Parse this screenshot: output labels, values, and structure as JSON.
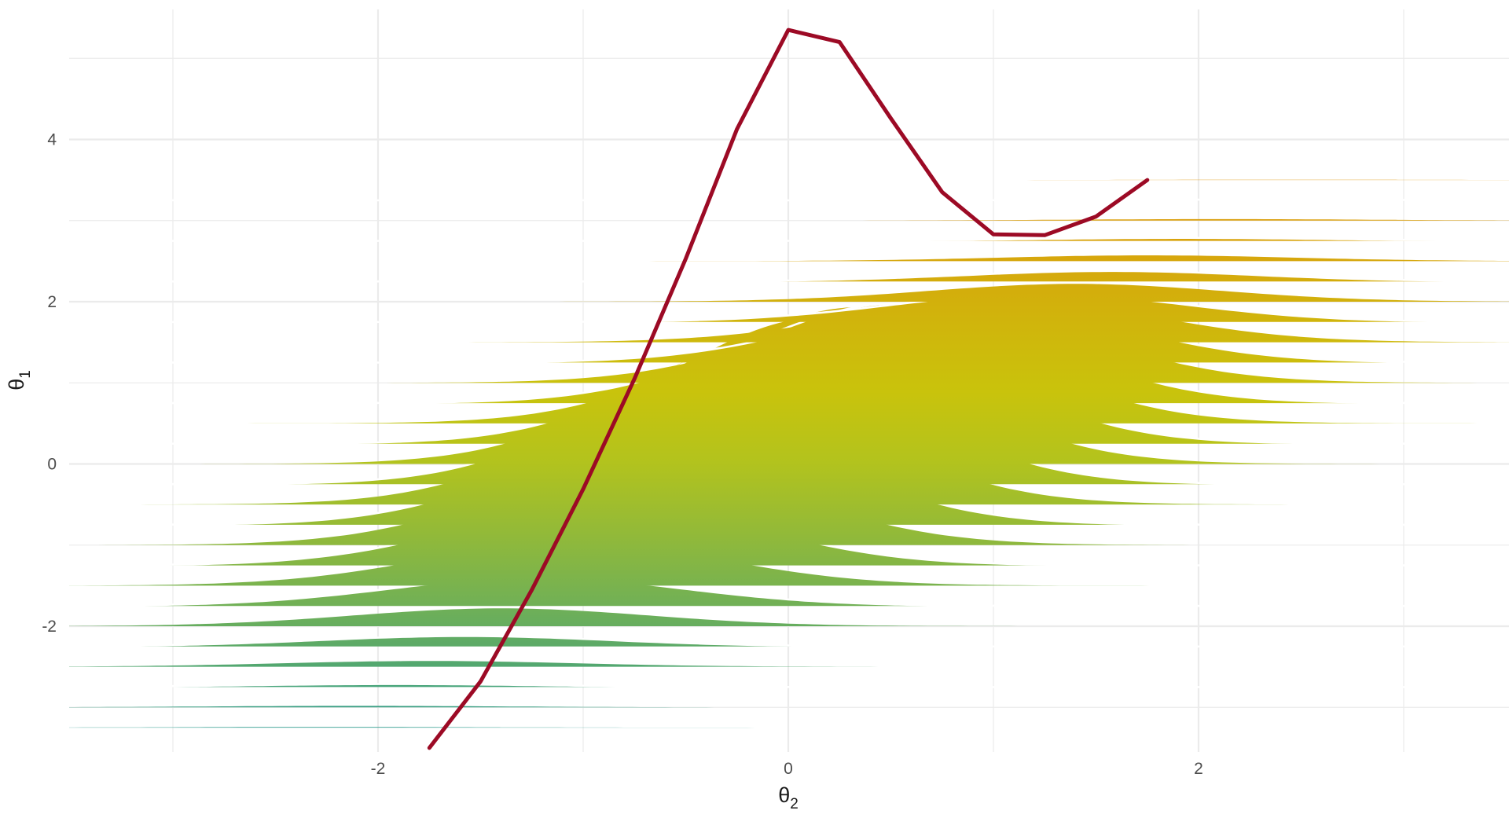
{
  "chart_data": {
    "type": "ridgeline",
    "title": "",
    "xlabel": "θ",
    "xlabel_subscript": "2",
    "ylabel": "θ",
    "ylabel_subscript": "1",
    "xlim": [
      -3.5,
      3.5
    ],
    "ylim": [
      -3.5,
      5.6
    ],
    "x_ticks": [
      {
        "value": -2,
        "label": "-2"
      },
      {
        "value": 0,
        "label": "0"
      },
      {
        "value": 2,
        "label": "2"
      }
    ],
    "y_ticks": [
      {
        "value": -2,
        "label": "-2"
      },
      {
        "value": 0,
        "label": "0"
      },
      {
        "value": 2,
        "label": "2"
      },
      {
        "value": 4,
        "label": "4"
      }
    ],
    "grid": true,
    "ridges": {
      "baseline_start": -3.25,
      "baseline_step": 0.25,
      "count": 28,
      "density": "bivariate normal, mean (0, 0), sd 1, correlation 0.7",
      "scale": 6.5,
      "outlined_every": 2
    },
    "colors": {
      "low": "#2b9b92",
      "mid": "#c6c90c",
      "high": "#ec7c0b",
      "outline": "#ffffff",
      "curve": "#9c0a25",
      "grid": "#ebebeb"
    },
    "curve": {
      "x": [
        -1.75,
        -1.5,
        -1.25,
        -1.0,
        -0.75,
        -0.5,
        -0.25,
        0.0,
        0.25,
        0.5,
        0.75,
        1.0,
        1.25,
        1.5,
        1.75
      ],
      "y": [
        -3.5,
        -2.68,
        -1.55,
        -0.31,
        1.05,
        2.53,
        4.13,
        5.35,
        5.2,
        4.26,
        3.35,
        2.83,
        2.82,
        3.05,
        3.5
      ]
    }
  }
}
